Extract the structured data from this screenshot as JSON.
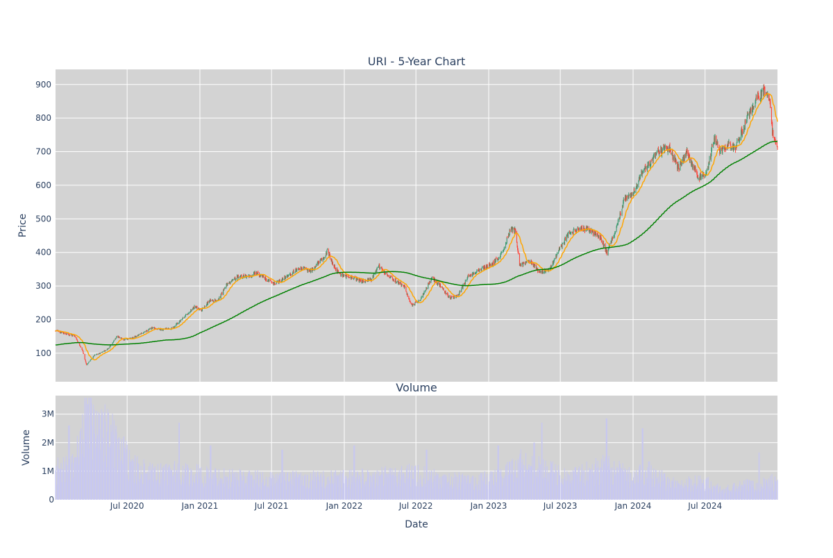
{
  "chart_data": [
    {
      "type": "candlestick",
      "title": "URI - 5-Year Chart",
      "xlabel": "",
      "ylabel": "Price",
      "ylim": [
        15,
        945
      ],
      "y_ticks": [
        100,
        200,
        300,
        400,
        500,
        600,
        700,
        800,
        900
      ],
      "x_range": [
        "2020-01-02",
        "2024-12-31"
      ],
      "x_ticks": [
        {
          "date": "2020-07-01",
          "label": "Jul 2020"
        },
        {
          "date": "2021-01-01",
          "label": "Jan 2021"
        },
        {
          "date": "2021-07-01",
          "label": "Jul 2021"
        },
        {
          "date": "2022-01-01",
          "label": "Jan 2022"
        },
        {
          "date": "2022-07-01",
          "label": "Jul 2022"
        },
        {
          "date": "2023-01-01",
          "label": "Jan 2023"
        },
        {
          "date": "2023-07-01",
          "label": "Jul 2023"
        },
        {
          "date": "2024-01-01",
          "label": "Jan 2024"
        },
        {
          "date": "2024-07-01",
          "label": "Jul 2024"
        }
      ],
      "grid": true,
      "legend": "none",
      "price_anchors": [
        [
          "2020-01-02",
          168
        ],
        [
          "2020-01-20",
          160
        ],
        [
          "2020-02-20",
          150
        ],
        [
          "2020-03-10",
          110
        ],
        [
          "2020-03-20",
          65
        ],
        [
          "2020-04-10",
          95
        ],
        [
          "2020-04-25",
          100
        ],
        [
          "2020-05-15",
          115
        ],
        [
          "2020-06-05",
          150
        ],
        [
          "2020-06-25",
          140
        ],
        [
          "2020-07-15",
          145
        ],
        [
          "2020-08-10",
          160
        ],
        [
          "2020-09-01",
          175
        ],
        [
          "2020-10-01",
          170
        ],
        [
          "2020-10-25",
          175
        ],
        [
          "2020-11-15",
          200
        ],
        [
          "2020-12-20",
          240
        ],
        [
          "2021-01-05",
          228
        ],
        [
          "2021-01-25",
          258
        ],
        [
          "2021-02-15",
          255
        ],
        [
          "2021-03-10",
          305
        ],
        [
          "2021-04-10",
          330
        ],
        [
          "2021-05-10",
          325
        ],
        [
          "2021-05-20",
          340
        ],
        [
          "2021-06-10",
          325
        ],
        [
          "2021-07-10",
          305
        ],
        [
          "2021-08-10",
          330
        ],
        [
          "2021-09-10",
          355
        ],
        [
          "2021-10-10",
          345
        ],
        [
          "2021-11-10",
          385
        ],
        [
          "2021-11-20",
          405
        ],
        [
          "2021-12-05",
          360
        ],
        [
          "2021-12-20",
          335
        ],
        [
          "2022-01-20",
          325
        ],
        [
          "2022-02-15",
          315
        ],
        [
          "2022-03-10",
          318
        ],
        [
          "2022-03-30",
          360
        ],
        [
          "2022-04-20",
          330
        ],
        [
          "2022-05-10",
          315
        ],
        [
          "2022-06-01",
          300
        ],
        [
          "2022-06-20",
          242
        ],
        [
          "2022-07-10",
          255
        ],
        [
          "2022-08-10",
          325
        ],
        [
          "2022-09-01",
          300
        ],
        [
          "2022-09-25",
          265
        ],
        [
          "2022-10-15",
          270
        ],
        [
          "2022-11-10",
          330
        ],
        [
          "2022-12-10",
          350
        ],
        [
          "2023-01-10",
          365
        ],
        [
          "2023-02-05",
          400
        ],
        [
          "2023-02-25",
          470
        ],
        [
          "2023-03-10",
          465
        ],
        [
          "2023-03-20",
          360
        ],
        [
          "2023-04-15",
          375
        ],
        [
          "2023-05-10",
          340
        ],
        [
          "2023-06-05",
          350
        ],
        [
          "2023-06-25",
          400
        ],
        [
          "2023-07-25",
          460
        ],
        [
          "2023-08-20",
          470
        ],
        [
          "2023-09-10",
          470
        ],
        [
          "2023-10-10",
          445
        ],
        [
          "2023-10-27",
          400
        ],
        [
          "2023-11-20",
          470
        ],
        [
          "2023-12-10",
          560
        ],
        [
          "2023-12-29",
          570
        ],
        [
          "2024-01-20",
          630
        ],
        [
          "2024-02-10",
          660
        ],
        [
          "2024-03-01",
          700
        ],
        [
          "2024-04-01",
          710
        ],
        [
          "2024-04-25",
          650
        ],
        [
          "2024-05-15",
          700
        ],
        [
          "2024-06-15",
          620
        ],
        [
          "2024-07-05",
          640
        ],
        [
          "2024-07-25",
          740
        ],
        [
          "2024-08-10",
          700
        ],
        [
          "2024-08-25",
          720
        ],
        [
          "2024-09-15",
          710
        ],
        [
          "2024-10-15",
          800
        ],
        [
          "2024-11-10",
          860
        ],
        [
          "2024-11-25",
          880
        ],
        [
          "2024-12-10",
          860
        ],
        [
          "2024-12-18",
          760
        ],
        [
          "2024-12-31",
          705
        ]
      ],
      "series": [
        {
          "name": "",
          "kind": "ohlc",
          "color_up": "#3d9970",
          "color_down": "#ff4136"
        },
        {
          "name": "",
          "kind": "sma",
          "window": 20,
          "color": "#ffa500"
        },
        {
          "name": "",
          "kind": "sma",
          "window": 200,
          "color": "#008000"
        }
      ]
    },
    {
      "type": "bar",
      "title": "Volume",
      "xlabel": "Date",
      "ylabel": "Volume",
      "ylim": [
        0,
        3650000
      ],
      "y_ticks": [
        {
          "value": 0,
          "label": "0"
        },
        {
          "value": 1000000,
          "label": "1M"
        },
        {
          "value": 2000000,
          "label": "2M"
        },
        {
          "value": 3000000,
          "label": "3M"
        }
      ],
      "bar_color": "#c8c8f0",
      "volume_anchors": [
        [
          "2020-01-02",
          1100000
        ],
        [
          "2020-02-20",
          1300000
        ],
        [
          "2020-03-20",
          3300000
        ],
        [
          "2020-04-20",
          2700000
        ],
        [
          "2020-06-01",
          2200000
        ],
        [
          "2020-07-15",
          1200000
        ],
        [
          "2020-09-01",
          950000
        ],
        [
          "2020-11-10",
          1100000
        ],
        [
          "2021-01-01",
          900000
        ],
        [
          "2021-04-01",
          850000
        ],
        [
          "2021-07-01",
          750000
        ],
        [
          "2021-10-01",
          750000
        ],
        [
          "2022-01-01",
          800000
        ],
        [
          "2022-04-01",
          850000
        ],
        [
          "2022-06-15",
          1000000
        ],
        [
          "2022-09-01",
          750000
        ],
        [
          "2022-12-01",
          700000
        ],
        [
          "2023-02-01",
          850000
        ],
        [
          "2023-03-20",
          1400000
        ],
        [
          "2023-05-15",
          1100000
        ],
        [
          "2023-08-01",
          850000
        ],
        [
          "2023-10-25",
          1200000
        ],
        [
          "2024-01-01",
          800000
        ],
        [
          "2024-02-10",
          1100000
        ],
        [
          "2024-04-01",
          600000
        ],
        [
          "2024-07-01",
          650000
        ],
        [
          "2024-08-15",
          350000
        ],
        [
          "2024-10-15",
          550000
        ],
        [
          "2024-12-31",
          700000
        ]
      ],
      "volume_spikes": [
        [
          "2020-03-16",
          3450000
        ],
        [
          "2020-03-23",
          3350000
        ],
        [
          "2020-04-01",
          3100000
        ],
        [
          "2020-05-15",
          3050000
        ],
        [
          "2020-02-05",
          2600000
        ],
        [
          "2020-11-09",
          2700000
        ],
        [
          "2021-01-28",
          1900000
        ],
        [
          "2021-07-28",
          1750000
        ],
        [
          "2022-01-26",
          1900000
        ],
        [
          "2022-07-28",
          1750000
        ],
        [
          "2023-01-25",
          1900000
        ],
        [
          "2023-04-26",
          2000000
        ],
        [
          "2023-05-15",
          2700000
        ],
        [
          "2023-10-26",
          2850000
        ],
        [
          "2024-01-25",
          2500000
        ],
        [
          "2024-11-15",
          1650000
        ]
      ]
    }
  ]
}
